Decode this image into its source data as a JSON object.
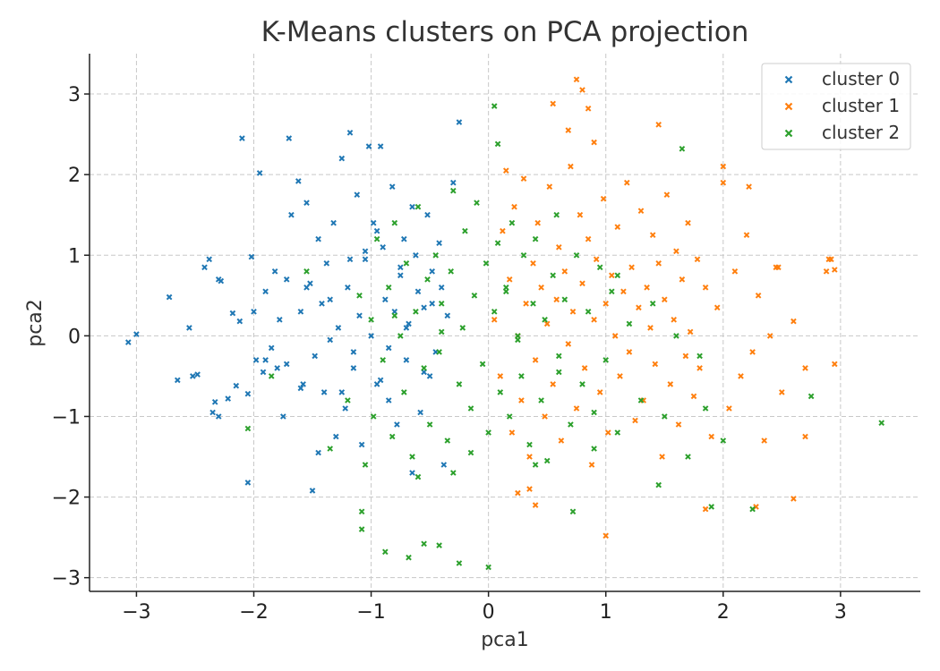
{
  "chart_data": {
    "type": "scatter",
    "title": "K-Means clusters on PCA projection",
    "xlabel": "pca1",
    "ylabel": "pca2",
    "xlim": [
      -3.4,
      3.68
    ],
    "ylim": [
      -3.17,
      3.5
    ],
    "xticks": [
      -3,
      -2,
      -1,
      0,
      1,
      2,
      3
    ],
    "yticks": [
      -3,
      -2,
      -1,
      0,
      1,
      2,
      3
    ],
    "grid": true,
    "legend_position": "top-right",
    "marker": "x",
    "series": [
      {
        "name": "cluster 0",
        "color": "#1f77b4",
        "x": [
          -3.07,
          -3.0,
          -2.72,
          -2.65,
          -2.55,
          -2.52,
          -2.48,
          -2.42,
          -2.38,
          -2.35,
          -2.33,
          -2.3,
          -2.28,
          -2.22,
          -2.18,
          -2.15,
          -2.12,
          -2.1,
          -2.05,
          -2.05,
          -2.02,
          -1.98,
          -1.95,
          -1.92,
          -1.9,
          -1.85,
          -1.82,
          -1.8,
          -1.78,
          -1.75,
          -1.72,
          -1.7,
          -1.68,
          -1.62,
          -1.6,
          -1.58,
          -1.55,
          -1.52,
          -1.5,
          -1.48,
          -1.45,
          -1.42,
          -1.4,
          -1.38,
          -1.35,
          -1.32,
          -1.3,
          -1.28,
          -1.25,
          -1.22,
          -1.2,
          -1.18,
          -1.15,
          -1.12,
          -1.1,
          -1.08,
          -1.05,
          -1.02,
          -1.0,
          -0.98,
          -0.95,
          -0.92,
          -0.9,
          -0.88,
          -0.85,
          -0.82,
          -0.8,
          -0.78,
          -0.75,
          -0.72,
          -0.7,
          -0.68,
          -0.65,
          -0.62,
          -0.6,
          -0.58,
          -0.55,
          -0.52,
          -0.5,
          -0.48,
          -0.45,
          -0.42,
          -0.4,
          -0.38,
          -0.35,
          -0.3,
          -0.25,
          -2.3,
          -1.9,
          -1.6,
          -1.35,
          -1.15,
          -0.95,
          -0.75,
          -0.55,
          -1.72,
          -1.45,
          -1.25,
          -1.05,
          -0.85,
          -0.65,
          -2.0,
          -1.55,
          -1.18,
          -0.92,
          -0.7,
          -0.48
        ],
        "y": [
          -0.08,
          0.02,
          0.48,
          -0.55,
          0.1,
          -0.5,
          -0.48,
          0.85,
          0.95,
          -0.95,
          -0.82,
          0.7,
          0.68,
          -0.78,
          0.28,
          -0.62,
          0.18,
          2.45,
          -0.72,
          -1.82,
          0.98,
          -0.3,
          2.02,
          -0.45,
          0.55,
          -0.15,
          0.8,
          -0.4,
          0.2,
          -1.0,
          -0.35,
          2.45,
          1.5,
          1.92,
          0.3,
          -0.6,
          1.65,
          0.65,
          -1.92,
          -0.25,
          1.2,
          0.4,
          -0.7,
          0.9,
          -0.05,
          1.4,
          -1.25,
          0.1,
          2.2,
          -0.9,
          0.6,
          2.52,
          -0.4,
          1.75,
          0.25,
          -1.35,
          0.95,
          2.35,
          0.0,
          1.4,
          -0.6,
          2.35,
          1.1,
          0.45,
          -0.8,
          1.85,
          0.3,
          -1.1,
          0.75,
          1.2,
          -0.3,
          0.15,
          -1.7,
          1.0,
          0.55,
          -0.95,
          0.35,
          1.5,
          -0.5,
          0.8,
          -0.2,
          1.15,
          0.6,
          -1.6,
          0.25,
          1.9,
          2.65,
          -1.0,
          -0.3,
          -0.65,
          0.45,
          -0.2,
          1.3,
          0.85,
          -0.45,
          0.7,
          -1.45,
          -0.7,
          1.05,
          -0.15,
          1.6,
          0.3,
          0.6,
          0.95,
          -0.55,
          0.1,
          0.4
        ]
      },
      {
        "name": "cluster 1",
        "color": "#ff7f0e",
        "x": [
          0.05,
          0.1,
          0.12,
          0.15,
          0.18,
          0.2,
          0.22,
          0.25,
          0.28,
          0.3,
          0.32,
          0.35,
          0.38,
          0.4,
          0.42,
          0.45,
          0.48,
          0.5,
          0.52,
          0.55,
          0.58,
          0.6,
          0.62,
          0.65,
          0.68,
          0.7,
          0.72,
          0.75,
          0.78,
          0.8,
          0.82,
          0.85,
          0.88,
          0.9,
          0.92,
          0.95,
          0.98,
          1.0,
          1.02,
          1.05,
          1.08,
          1.1,
          1.12,
          1.15,
          1.18,
          1.2,
          1.22,
          1.25,
          1.28,
          1.3,
          1.32,
          1.35,
          1.38,
          1.4,
          1.42,
          1.45,
          1.48,
          1.5,
          1.52,
          1.55,
          1.58,
          1.6,
          1.62,
          1.65,
          1.68,
          1.7,
          1.72,
          1.75,
          1.78,
          1.8,
          1.85,
          1.9,
          1.95,
          2.0,
          2.05,
          2.1,
          2.15,
          2.2,
          2.25,
          2.3,
          2.35,
          2.4,
          2.45,
          2.5,
          2.6,
          2.7,
          2.9,
          2.95,
          0.55,
          0.75,
          0.8,
          0.85,
          0.68,
          0.9,
          1.45,
          2.0,
          2.22,
          2.47,
          2.95,
          2.92,
          2.88,
          2.7,
          2.6,
          2.28,
          1.85,
          1.0,
          0.35,
          0.25,
          0.4
        ],
        "y": [
          0.2,
          -0.5,
          1.3,
          2.05,
          0.7,
          -1.2,
          1.6,
          0.0,
          -0.8,
          1.95,
          0.4,
          -1.5,
          0.9,
          -0.3,
          1.4,
          0.6,
          -1.0,
          0.15,
          1.85,
          -0.6,
          0.45,
          1.1,
          -1.3,
          0.8,
          -0.1,
          2.1,
          0.3,
          -0.9,
          1.5,
          0.65,
          -0.4,
          1.2,
          -1.6,
          0.2,
          0.95,
          -0.7,
          1.7,
          0.4,
          -1.2,
          0.75,
          0.0,
          1.35,
          -0.5,
          0.55,
          1.9,
          -0.2,
          0.85,
          -1.05,
          0.35,
          1.55,
          -0.8,
          0.6,
          0.1,
          1.25,
          -0.35,
          0.9,
          -1.5,
          0.45,
          1.75,
          -0.6,
          0.2,
          1.05,
          -1.1,
          0.7,
          -0.25,
          1.4,
          0.05,
          -0.75,
          0.95,
          -0.4,
          0.6,
          -1.25,
          0.35,
          2.1,
          -0.9,
          0.8,
          -0.5,
          1.25,
          -0.2,
          0.5,
          -1.3,
          0.0,
          0.85,
          -0.7,
          0.18,
          -1.25,
          0.95,
          -0.35,
          2.88,
          3.18,
          3.05,
          2.82,
          2.55,
          2.4,
          2.62,
          1.9,
          1.85,
          0.85,
          0.82,
          0.95,
          0.8,
          -0.4,
          -2.02,
          -2.12,
          -2.15,
          -2.48,
          -1.9,
          -1.95,
          -2.1
        ]
      },
      {
        "name": "cluster 2",
        "color": "#2ca02c",
        "x": [
          -2.05,
          -1.85,
          -1.55,
          -1.35,
          -1.2,
          -1.1,
          -1.05,
          -1.0,
          -0.98,
          -0.95,
          -0.9,
          -0.85,
          -0.82,
          -0.8,
          -0.75,
          -0.72,
          -0.7,
          -0.65,
          -0.62,
          -0.6,
          -0.55,
          -0.52,
          -0.5,
          -0.45,
          -0.42,
          -0.4,
          -0.35,
          -0.32,
          -0.3,
          -0.25,
          -0.22,
          -0.2,
          -0.15,
          -0.12,
          -0.1,
          -0.05,
          -0.02,
          0.0,
          0.05,
          0.08,
          0.1,
          0.15,
          0.18,
          0.2,
          0.25,
          0.28,
          0.3,
          0.35,
          0.38,
          0.4,
          0.45,
          0.48,
          0.5,
          0.55,
          0.58,
          0.6,
          0.65,
          0.7,
          0.75,
          0.8,
          0.85,
          0.9,
          0.95,
          1.0,
          1.05,
          1.1,
          1.2,
          1.3,
          1.4,
          1.5,
          1.6,
          1.7,
          1.8,
          1.85,
          1.9,
          2.0,
          2.25,
          2.75,
          3.35,
          1.65,
          0.05,
          0.08,
          -0.25,
          -0.42,
          -0.55,
          -0.68,
          -0.88,
          -1.08,
          -1.08,
          0.0,
          0.72,
          1.45,
          -0.3,
          0.4,
          -0.15,
          0.9,
          -0.6,
          0.25,
          -0.8,
          1.1,
          0.6,
          -0.4,
          0.15
        ],
        "y": [
          -1.15,
          -0.5,
          0.8,
          -1.4,
          -0.8,
          0.5,
          -1.6,
          0.2,
          -1.0,
          1.2,
          -0.3,
          0.6,
          -1.25,
          1.4,
          0.0,
          -0.7,
          0.9,
          -1.5,
          0.3,
          1.6,
          -0.4,
          0.7,
          -1.1,
          1.0,
          -0.2,
          0.4,
          -1.3,
          0.8,
          1.8,
          -0.6,
          0.1,
          1.3,
          -0.9,
          0.5,
          1.65,
          -0.35,
          0.9,
          -1.2,
          0.3,
          1.15,
          -0.7,
          0.6,
          -1.0,
          1.4,
          0.0,
          -0.5,
          1.0,
          -1.35,
          0.4,
          1.2,
          -0.8,
          0.2,
          -1.55,
          0.75,
          1.5,
          -0.25,
          0.45,
          -1.1,
          1.0,
          -0.6,
          0.3,
          -1.4,
          0.85,
          -0.3,
          0.55,
          -1.2,
          0.15,
          -0.8,
          0.4,
          -1.0,
          0.0,
          -1.5,
          -0.25,
          -0.9,
          -2.12,
          -1.3,
          -2.15,
          -0.75,
          -1.08,
          2.32,
          2.85,
          2.38,
          -2.82,
          -2.6,
          -2.58,
          -2.75,
          -2.68,
          -2.18,
          -2.4,
          -2.87,
          -2.18,
          -1.85,
          -1.7,
          -1.6,
          -1.45,
          -0.95,
          -1.75,
          -0.05,
          0.25,
          0.75,
          -0.45,
          0.05,
          0.55
        ]
      }
    ]
  }
}
